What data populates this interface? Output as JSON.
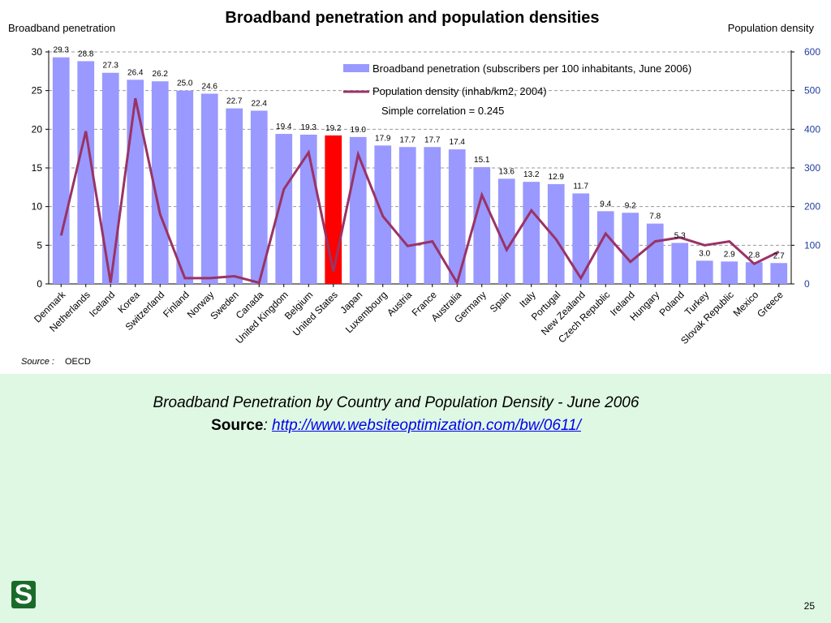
{
  "chart_data": {
    "type": "bar",
    "title": "Broadband penetration and population densities",
    "left_axis_title": "Broadband penetration",
    "right_axis_title": "Population density",
    "categories": [
      "Denmark",
      "Netherlands",
      "Iceland",
      "Korea",
      "Switzerland",
      "Finland",
      "Norway",
      "Sweden",
      "Canada",
      "United Kingdom",
      "Belgium",
      "United States",
      "Japan",
      "Luxembourg",
      "Austria",
      "France",
      "Australia",
      "Germany",
      "Spain",
      "Italy",
      "Portugal",
      "New Zealand",
      "Czech Republic",
      "Ireland",
      "Hungary",
      "Poland",
      "Turkey",
      "Slovak Republic",
      "Mexico",
      "Greece"
    ],
    "series": [
      {
        "name": "Broadband penetration (subscribers per 100 inhabitants, June 2006)",
        "type": "bar",
        "axis": "left",
        "color": "#9999ff",
        "highlight_color": "#ff0000",
        "highlight_index": 11,
        "values": [
          29.3,
          28.8,
          27.3,
          26.4,
          26.2,
          25.0,
          24.6,
          22.7,
          22.4,
          19.4,
          19.3,
          19.2,
          19.0,
          17.9,
          17.7,
          17.7,
          17.4,
          15.1,
          13.6,
          13.2,
          12.9,
          11.7,
          9.4,
          9.2,
          7.8,
          5.3,
          3.0,
          2.9,
          2.8,
          2.7
        ],
        "labels": [
          "29.3",
          "28.8",
          "27.3",
          "26.4",
          "26.2",
          "25.0",
          "24.6",
          "22.7",
          "22.4",
          "19.4",
          "19.3",
          "19.2",
          "19.0",
          "17.9",
          "17.7",
          "17.7",
          "17.4",
          "15.1",
          "13.6",
          "13.2",
          "12.9",
          "11.7",
          "9.4",
          "9.2",
          "7.8",
          "5.3",
          "3.0",
          "2.9",
          "2.8",
          "2.7"
        ]
      },
      {
        "name": "Population density (inhab/km2, 2004)",
        "type": "line",
        "axis": "right",
        "color": "#993366",
        "values": [
          125,
          395,
          3,
          480,
          180,
          15,
          15,
          20,
          3,
          245,
          340,
          32,
          335,
          175,
          98,
          110,
          3,
          230,
          88,
          190,
          115,
          15,
          130,
          57,
          110,
          120,
          100,
          110,
          52,
          83
        ]
      }
    ],
    "annotation": "Simple correlation = 0.245",
    "ylim_left": [
      0,
      30
    ],
    "yticks_left": [
      0,
      5,
      10,
      15,
      20,
      25,
      30
    ],
    "ylim_right": [
      0,
      600
    ],
    "yticks_right": [
      0,
      100,
      200,
      300,
      400,
      500,
      600
    ],
    "grid": "horizontal dashed",
    "legend_placement": "top-right",
    "source_note_label": "Source :",
    "source_note_value": "OECD"
  },
  "caption": {
    "line": "Broadband Penetration by Country and Population Density - June 2006",
    "source_label": "Source",
    "source_colon": ":",
    "source_link": "http://www.websiteoptimization.com/bw/0611/"
  },
  "logo_text": "S",
  "page_number": "25"
}
